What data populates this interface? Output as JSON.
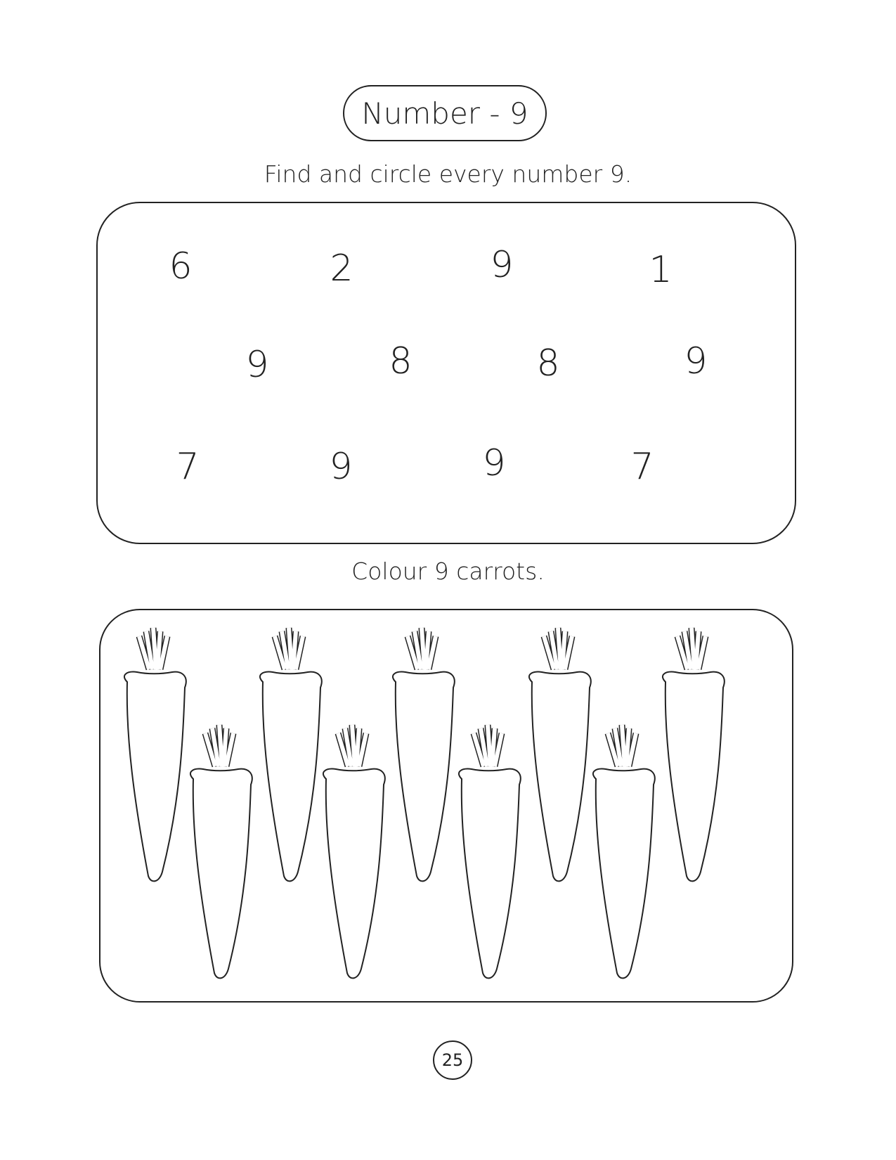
{
  "title": "Number - 9",
  "instruction_find": "Find and circle every number 9.",
  "numbers": [
    "6",
    "2",
    "9",
    "1",
    "9",
    "8",
    "8",
    "9",
    "7",
    "9",
    "9",
    "7"
  ],
  "instruction_colour": "Colour 9 carrots.",
  "carrot_count": 9,
  "page_number": "25"
}
